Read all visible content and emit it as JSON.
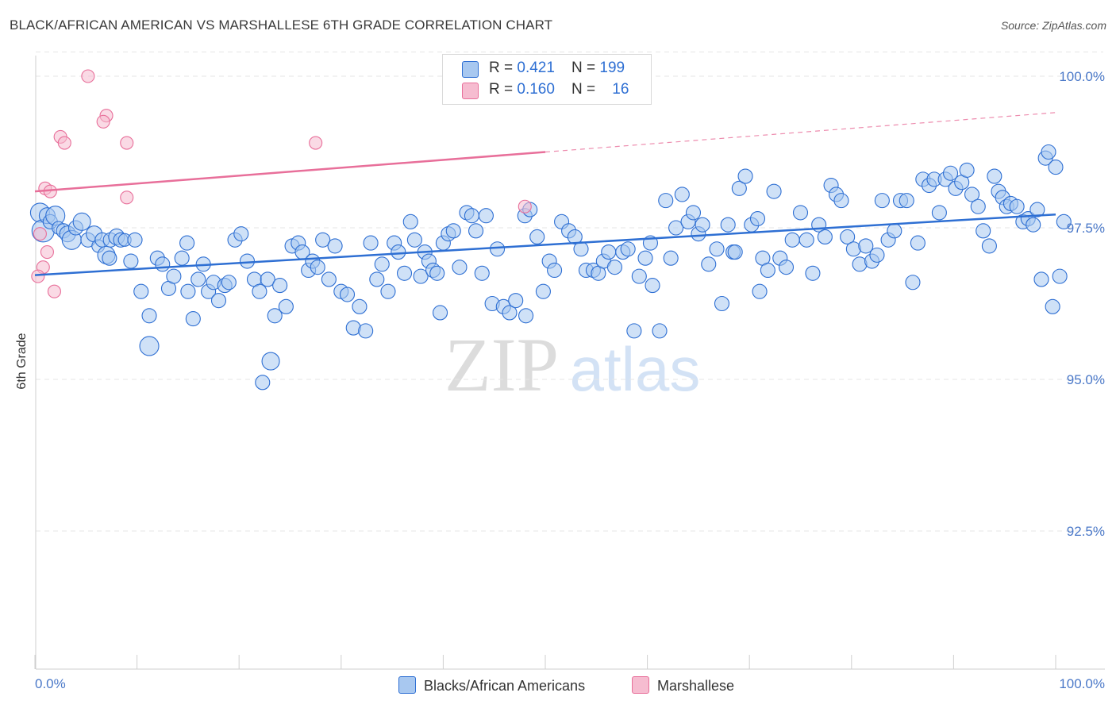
{
  "title": "BLACK/AFRICAN AMERICAN VS MARSHALLESE 6TH GRADE CORRELATION CHART",
  "source": "Source: ZipAtlas.com",
  "watermark": {
    "zip": "ZIP",
    "atlas": "atlas"
  },
  "colors": {
    "blue": "#2e6fd3",
    "blue_fill": "#a8c8f0",
    "pink": "#e86f9a",
    "pink_fill": "#f6bcd0",
    "grid": "#e6e6e6"
  },
  "legend_top": [
    {
      "r_label": "R = ",
      "r_value": "0.421",
      "n_label": "N = ",
      "n_value": "199"
    },
    {
      "r_label": "R = ",
      "r_value": "0.160",
      "n_label": "N = ",
      "n_value": "16"
    }
  ],
  "chart_data": {
    "type": "scatter",
    "title": "BLACK/AFRICAN AMERICAN VS MARSHALLESE 6TH GRADE CORRELATION CHART",
    "xlabel": "",
    "ylabel": "6th Grade",
    "xlim": [
      0,
      100
    ],
    "ylim": [
      90.0,
      100.4
    ],
    "x_tick_labels": [
      "0.0%",
      "100.0%"
    ],
    "y_ticks": [
      92.5,
      95.0,
      97.5,
      100.0
    ],
    "y_tick_labels": [
      "92.5%",
      "95.0%",
      "97.5%",
      "100.0%"
    ],
    "series": [
      {
        "name": "Blacks/African Americans",
        "color": "#2e6fd3",
        "r": 0.421,
        "n": 199,
        "trend": {
          "x0": 0,
          "y0": 96.72,
          "x1": 100,
          "y1": 97.72
        },
        "points": [
          [
            0.5,
            97.75,
            12
          ],
          [
            0.8,
            97.45,
            14
          ],
          [
            1.2,
            97.7,
            10
          ],
          [
            1.5,
            97.6,
            9
          ],
          [
            2.0,
            97.7,
            12
          ],
          [
            2.3,
            97.5,
            8
          ],
          [
            2.8,
            97.45,
            9
          ],
          [
            3.2,
            97.4,
            10
          ],
          [
            3.6,
            97.3,
            12
          ],
          [
            4.0,
            97.5,
            9
          ],
          [
            4.6,
            97.6,
            11
          ],
          [
            5.2,
            97.3,
            9
          ],
          [
            5.8,
            97.4,
            10
          ],
          [
            6.2,
            97.2,
            8
          ],
          [
            6.6,
            97.3,
            9
          ],
          [
            7.0,
            97.05,
            11
          ],
          [
            7.4,
            97.3,
            9
          ],
          [
            8.0,
            97.35,
            10
          ],
          [
            8.4,
            97.3,
            9
          ],
          [
            8.8,
            97.3,
            8
          ],
          [
            9.4,
            96.95,
            9
          ],
          [
            9.8,
            97.3,
            9
          ],
          [
            10.4,
            96.45,
            9
          ],
          [
            11.2,
            96.05,
            9
          ],
          [
            12.0,
            97.0,
            9
          ],
          [
            12.5,
            96.9,
            9
          ],
          [
            13.1,
            96.5,
            9
          ],
          [
            13.6,
            96.7,
            9
          ],
          [
            14.4,
            97.0,
            9
          ],
          [
            15.0,
            96.45,
            9
          ],
          [
            15.5,
            96.0,
            9
          ],
          [
            16.0,
            96.65,
            9
          ],
          [
            16.5,
            96.9,
            9
          ],
          [
            17.0,
            96.45,
            9
          ],
          [
            17.5,
            96.6,
            9
          ],
          [
            18.0,
            96.3,
            9
          ],
          [
            18.6,
            96.55,
            9
          ],
          [
            19.0,
            96.6,
            9
          ],
          [
            19.6,
            97.3,
            9
          ],
          [
            20.2,
            97.4,
            9
          ],
          [
            20.8,
            96.95,
            9
          ],
          [
            21.5,
            96.65,
            9
          ],
          [
            22.0,
            96.45,
            9
          ],
          [
            22.8,
            96.65,
            9
          ],
          [
            23.5,
            96.05,
            9
          ],
          [
            24.0,
            96.55,
            9
          ],
          [
            24.6,
            96.2,
            9
          ],
          [
            25.2,
            97.2,
            9
          ],
          [
            25.8,
            97.25,
            9
          ],
          [
            26.2,
            97.1,
            9
          ],
          [
            26.8,
            96.8,
            9
          ],
          [
            27.2,
            96.95,
            9
          ],
          [
            27.7,
            96.85,
            9
          ],
          [
            28.2,
            97.3,
            9
          ],
          [
            28.8,
            96.65,
            9
          ],
          [
            29.4,
            97.2,
            9
          ],
          [
            30.0,
            96.45,
            9
          ],
          [
            30.6,
            96.4,
            9
          ],
          [
            31.2,
            95.85,
            9
          ],
          [
            31.8,
            96.2,
            9
          ],
          [
            32.4,
            95.8,
            9
          ],
          [
            32.9,
            97.25,
            9
          ],
          [
            33.5,
            96.65,
            9
          ],
          [
            34.0,
            96.9,
            9
          ],
          [
            34.6,
            96.45,
            9
          ],
          [
            35.2,
            97.25,
            9
          ],
          [
            35.6,
            97.1,
            9
          ],
          [
            36.2,
            96.75,
            9
          ],
          [
            36.8,
            97.6,
            9
          ],
          [
            37.2,
            97.3,
            9
          ],
          [
            37.8,
            96.7,
            9
          ],
          [
            38.2,
            97.1,
            9
          ],
          [
            38.6,
            96.95,
            9
          ],
          [
            39.0,
            96.8,
            9
          ],
          [
            39.4,
            96.75,
            9
          ],
          [
            40.0,
            97.25,
            9
          ],
          [
            40.5,
            97.4,
            9
          ],
          [
            41.0,
            97.45,
            9
          ],
          [
            41.6,
            96.85,
            9
          ],
          [
            42.3,
            97.75,
            9
          ],
          [
            42.8,
            97.7,
            9
          ],
          [
            43.2,
            97.45,
            9
          ],
          [
            43.8,
            96.75,
            9
          ],
          [
            44.2,
            97.7,
            9
          ],
          [
            44.8,
            96.25,
            9
          ],
          [
            45.3,
            97.15,
            9
          ],
          [
            45.9,
            96.2,
            9
          ],
          [
            46.5,
            96.1,
            9
          ],
          [
            47.1,
            96.3,
            9
          ],
          [
            48.0,
            97.7,
            9
          ],
          [
            48.5,
            97.8,
            9
          ],
          [
            49.2,
            97.35,
            9
          ],
          [
            49.8,
            96.45,
            9
          ],
          [
            50.4,
            96.95,
            9
          ],
          [
            50.9,
            96.8,
            9
          ],
          [
            51.6,
            97.6,
            9
          ],
          [
            52.3,
            97.45,
            9
          ],
          [
            52.9,
            97.35,
            9
          ],
          [
            53.5,
            97.15,
            9
          ],
          [
            54.0,
            96.8,
            9
          ],
          [
            54.7,
            96.8,
            9
          ],
          [
            55.2,
            96.75,
            9
          ],
          [
            55.7,
            96.95,
            9
          ],
          [
            56.2,
            97.1,
            9
          ],
          [
            56.8,
            96.85,
            9
          ],
          [
            57.6,
            97.1,
            9
          ],
          [
            58.1,
            97.15,
            9
          ],
          [
            58.7,
            95.8,
            9
          ],
          [
            59.2,
            96.7,
            9
          ],
          [
            59.8,
            97.0,
            9
          ],
          [
            60.5,
            96.55,
            9
          ],
          [
            61.2,
            95.8,
            9
          ],
          [
            61.8,
            97.95,
            9
          ],
          [
            62.3,
            97.0,
            9
          ],
          [
            62.8,
            97.5,
            9
          ],
          [
            63.4,
            98.05,
            9
          ],
          [
            64.0,
            97.6,
            9
          ],
          [
            64.5,
            97.75,
            9
          ],
          [
            65.0,
            97.4,
            9
          ],
          [
            65.4,
            97.55,
            9
          ],
          [
            66.0,
            96.9,
            9
          ],
          [
            66.8,
            97.15,
            9
          ],
          [
            67.3,
            96.25,
            9
          ],
          [
            67.9,
            97.55,
            9
          ],
          [
            68.4,
            97.1,
            9
          ],
          [
            69.0,
            98.15,
            9
          ],
          [
            69.6,
            98.35,
            9
          ],
          [
            70.2,
            97.55,
            9
          ],
          [
            70.8,
            97.65,
            9
          ],
          [
            71.3,
            97.0,
            9
          ],
          [
            71.8,
            96.8,
            9
          ],
          [
            72.4,
            98.1,
            9
          ],
          [
            73.0,
            97.0,
            9
          ],
          [
            73.6,
            96.85,
            9
          ],
          [
            74.2,
            97.3,
            9
          ],
          [
            75.0,
            97.75,
            9
          ],
          [
            75.6,
            97.3,
            9
          ],
          [
            76.2,
            96.75,
            9
          ],
          [
            76.8,
            97.55,
            9
          ],
          [
            77.4,
            97.35,
            9
          ],
          [
            78.0,
            98.2,
            9
          ],
          [
            78.5,
            98.05,
            9
          ],
          [
            79.0,
            97.95,
            9
          ],
          [
            79.6,
            97.35,
            9
          ],
          [
            80.2,
            97.15,
            9
          ],
          [
            80.8,
            96.9,
            9
          ],
          [
            81.4,
            97.2,
            9
          ],
          [
            82.0,
            96.95,
            9
          ],
          [
            82.5,
            97.05,
            9
          ],
          [
            83.0,
            97.95,
            9
          ],
          [
            83.6,
            97.3,
            9
          ],
          [
            84.2,
            97.45,
            9
          ],
          [
            84.8,
            97.95,
            9
          ],
          [
            85.4,
            97.95,
            9
          ],
          [
            86.0,
            96.6,
            9
          ],
          [
            86.5,
            97.25,
            9
          ],
          [
            87.0,
            98.3,
            9
          ],
          [
            87.6,
            98.2,
            9
          ],
          [
            88.1,
            98.3,
            9
          ],
          [
            88.6,
            97.75,
            9
          ],
          [
            89.2,
            98.3,
            9
          ],
          [
            89.7,
            98.4,
            9
          ],
          [
            90.2,
            98.15,
            9
          ],
          [
            90.8,
            98.25,
            9
          ],
          [
            91.3,
            98.45,
            9
          ],
          [
            91.8,
            98.05,
            9
          ],
          [
            92.4,
            97.85,
            9
          ],
          [
            92.9,
            97.45,
            9
          ],
          [
            93.5,
            97.2,
            9
          ],
          [
            94.0,
            98.35,
            9
          ],
          [
            94.4,
            98.1,
            9
          ],
          [
            94.8,
            98.0,
            9
          ],
          [
            95.2,
            97.85,
            9
          ],
          [
            95.6,
            97.9,
            9
          ],
          [
            96.2,
            97.85,
            9
          ],
          [
            96.8,
            97.6,
            9
          ],
          [
            97.3,
            97.65,
            9
          ],
          [
            97.8,
            97.55,
            9
          ],
          [
            98.2,
            97.8,
            9
          ],
          [
            98.6,
            96.65,
            9
          ],
          [
            99.0,
            98.65,
            9
          ],
          [
            99.3,
            98.75,
            9
          ],
          [
            99.7,
            96.2,
            9
          ],
          [
            100.0,
            98.5,
            9
          ],
          [
            100.4,
            96.7,
            9
          ],
          [
            100.8,
            97.6,
            9
          ],
          [
            11.2,
            95.55,
            12
          ],
          [
            23.1,
            95.3,
            11
          ],
          [
            22.3,
            94.95,
            9
          ],
          [
            14.9,
            97.25,
            9
          ],
          [
            7.3,
            97.0,
            9
          ],
          [
            60.3,
            97.25,
            9
          ],
          [
            48.1,
            96.05,
            9
          ],
          [
            39.7,
            96.1,
            9
          ],
          [
            68.6,
            97.1,
            9
          ],
          [
            71.0,
            96.45,
            9
          ]
        ]
      },
      {
        "name": "Marshallese",
        "color": "#e86f9a",
        "r": 0.16,
        "n": 16,
        "trend": {
          "x0": 0,
          "y0": 98.1,
          "x1": 50,
          "y1": 98.75,
          "x_ext": 100,
          "y_ext": 99.4
        },
        "points": [
          [
            5.2,
            100.0,
            8
          ],
          [
            7.0,
            99.35,
            8
          ],
          [
            6.7,
            99.25,
            8
          ],
          [
            2.5,
            99.0,
            8
          ],
          [
            2.9,
            98.9,
            8
          ],
          [
            9.0,
            98.9,
            8
          ],
          [
            27.5,
            98.9,
            8
          ],
          [
            1.0,
            98.15,
            8
          ],
          [
            1.5,
            98.1,
            8
          ],
          [
            9.0,
            98.0,
            8
          ],
          [
            48.0,
            97.85,
            8
          ],
          [
            0.5,
            97.4,
            8
          ],
          [
            1.2,
            97.1,
            8
          ],
          [
            0.8,
            96.85,
            8
          ],
          [
            0.3,
            96.7,
            8
          ],
          [
            1.9,
            96.45,
            8
          ]
        ]
      }
    ]
  }
}
